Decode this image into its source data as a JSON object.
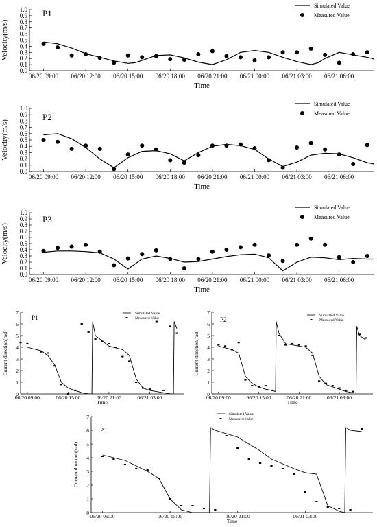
{
  "chart_data": [
    {
      "type": "line",
      "panel_label": "P1",
      "xlabel": "Time",
      "ylabel": "Velocity(m/s)",
      "ylim": [
        0,
        1.0
      ],
      "y_ticks": [
        "0.0",
        "0.1",
        "0.2",
        "0.3",
        "0.4",
        "0.5",
        "0.6",
        "0.7",
        "0.8",
        "0.9",
        "1.0"
      ],
      "x_ticks": [
        "06/20  09:00",
        "06/20  12:00",
        "06/20  15:00",
        "06/20  18:00",
        "06/20  21:00",
        "06/21  00:00",
        "06/21  03:00",
        "06/21  06:00"
      ],
      "legend": [
        "Simulated Value",
        "Measured Value"
      ],
      "legend_position": "top-right",
      "series": [
        {
          "name": "Simulated Value",
          "style": "line",
          "x_hours": [
            0,
            1,
            2,
            3,
            4,
            5,
            6,
            6.5,
            7,
            8,
            9,
            10,
            11,
            12,
            13,
            14,
            15,
            16,
            17,
            18,
            19,
            19.5,
            20,
            21,
            22,
            23,
            23.5
          ],
          "values": [
            0.47,
            0.44,
            0.37,
            0.28,
            0.22,
            0.16,
            0.12,
            0.13,
            0.17,
            0.25,
            0.26,
            0.21,
            0.14,
            0.1,
            0.18,
            0.3,
            0.33,
            0.3,
            0.22,
            0.15,
            0.1,
            0.13,
            0.2,
            0.3,
            0.26,
            0.22,
            0.19
          ]
        },
        {
          "name": "Measured Value",
          "style": "scatter",
          "x_hours": [
            0,
            1,
            2,
            3,
            4,
            5,
            6,
            7,
            8,
            9,
            10,
            11,
            12,
            13,
            14,
            15,
            16,
            17,
            18,
            19,
            20,
            21,
            22,
            23,
            24
          ],
          "values": [
            0.44,
            0.38,
            0.25,
            0.27,
            0.21,
            0.13,
            0.25,
            0.22,
            0.24,
            0.19,
            0.18,
            0.27,
            0.32,
            0.24,
            0.22,
            0.17,
            0.22,
            0.3,
            0.3,
            0.36,
            0.26,
            0.13,
            0.27,
            0.3,
            0.13
          ]
        }
      ]
    },
    {
      "type": "line",
      "panel_label": "P2",
      "xlabel": "Time",
      "ylabel": "Velocity(m/s)",
      "ylim": [
        0,
        1.0
      ],
      "y_ticks": [
        "0.0",
        "0.1",
        "0.2",
        "0.3",
        "0.4",
        "0.5",
        "0.6",
        "0.7",
        "0.8",
        "0.9",
        "1.0"
      ],
      "x_ticks": [
        "06/20  09:00",
        "06/20  12:00",
        "06/20  15:00",
        "06/20  18:00",
        "06/20  21:00",
        "06/21  00:00",
        "06/21  03:00",
        "06/21  06:00"
      ],
      "legend": [
        "Simulated Value",
        "Measured Value"
      ],
      "legend_position": "top-right",
      "series": [
        {
          "name": "Simulated Value",
          "style": "line",
          "x_hours": [
            0,
            1,
            2,
            3,
            4,
            5,
            6,
            7,
            8,
            9,
            10,
            11,
            12,
            13,
            14,
            15,
            16,
            17,
            18,
            19,
            20,
            21,
            22,
            23,
            23.5
          ],
          "values": [
            0.58,
            0.6,
            0.52,
            0.38,
            0.2,
            0.06,
            0.22,
            0.32,
            0.33,
            0.28,
            0.17,
            0.3,
            0.4,
            0.43,
            0.41,
            0.35,
            0.2,
            0.08,
            0.15,
            0.26,
            0.29,
            0.28,
            0.22,
            0.14,
            0.12
          ]
        },
        {
          "name": "Measured Value",
          "style": "scatter",
          "x_hours": [
            0,
            1,
            2,
            3,
            4,
            5,
            6,
            7,
            8,
            9,
            10,
            11,
            12,
            13,
            14,
            15,
            16,
            17,
            18,
            19,
            20,
            21,
            22,
            23,
            24
          ],
          "values": [
            0.5,
            0.47,
            0.36,
            0.41,
            0.36,
            0.04,
            0.27,
            0.41,
            0.35,
            0.18,
            0.14,
            0.26,
            0.41,
            0.41,
            0.43,
            0.37,
            0.18,
            0.06,
            0.38,
            0.45,
            0.35,
            0.27,
            0.12,
            0.42,
            0.37
          ]
        }
      ]
    },
    {
      "type": "line",
      "panel_label": "P3",
      "xlabel": "Time",
      "ylabel": "Velocity(m/s)",
      "ylim": [
        0,
        1.0
      ],
      "y_ticks": [
        "0.0",
        "0.1",
        "0.2",
        "0.3",
        "0.4",
        "0.5",
        "0.6",
        "0.7",
        "0.8",
        "0.9",
        "1.0"
      ],
      "x_ticks": [
        "06/20  09:00",
        "06/20  12:00",
        "06/20  15:00",
        "06/20  18:00",
        "06/20  21:00",
        "06/21  00:00",
        "06/21  03:00",
        "06/21  06:00"
      ],
      "legend": [
        "Simulated Value",
        "Measured Value"
      ],
      "legend_position": "top-right",
      "series": [
        {
          "name": "Simulated Value",
          "style": "line",
          "x_hours": [
            0,
            1,
            2,
            3,
            4,
            5,
            6,
            7,
            8,
            9,
            10,
            11,
            12,
            13,
            14,
            15,
            16,
            17,
            18,
            19,
            20,
            21,
            22,
            23,
            23.5
          ],
          "values": [
            0.36,
            0.38,
            0.38,
            0.37,
            0.35,
            0.25,
            0.09,
            0.25,
            0.3,
            0.26,
            0.2,
            0.21,
            0.25,
            0.29,
            0.32,
            0.33,
            0.27,
            0.06,
            0.2,
            0.28,
            0.27,
            0.24,
            0.26,
            0.25,
            0.25
          ]
        },
        {
          "name": "Measured Value",
          "style": "scatter",
          "x_hours": [
            0,
            1,
            2,
            3,
            4,
            5,
            6,
            7,
            8,
            9,
            10,
            11,
            12,
            13,
            14,
            15,
            16,
            17,
            18,
            19,
            20,
            21,
            22,
            23,
            24
          ],
          "values": [
            0.38,
            0.43,
            0.45,
            0.48,
            0.37,
            0.15,
            0.26,
            0.33,
            0.39,
            0.25,
            0.1,
            0.25,
            0.37,
            0.4,
            0.44,
            0.48,
            0.31,
            0.22,
            0.48,
            0.58,
            0.48,
            0.28,
            0.2,
            0.3,
            0.29
          ]
        }
      ]
    },
    {
      "type": "line",
      "panel_label": "P1",
      "xlabel": "Time",
      "ylabel": "Current direction(rad)",
      "ylim": [
        0,
        7
      ],
      "y_ticks": [
        "0",
        "1",
        "2",
        "3",
        "4",
        "5",
        "6",
        "7"
      ],
      "x_ticks": [
        "06/20  09:00",
        "06/20  15:00",
        "06/20  21:00",
        "06/21  03:00"
      ],
      "legend": [
        "Simulated Value",
        "Measured Value"
      ],
      "legend_position": "top-right",
      "series": [
        {
          "name": "Simulated Value",
          "style": "line",
          "x_hours": [
            0,
            2,
            3,
            4,
            5,
            6,
            7,
            8,
            9,
            9.5,
            9.6,
            10,
            12,
            14,
            15,
            16,
            17,
            18,
            20,
            21,
            21.5,
            21.6,
            22
          ],
          "values": [
            4.0,
            3.7,
            3.3,
            2.5,
            1.0,
            0.5,
            0.3,
            0.1,
            0.0,
            0.0,
            6.2,
            5.0,
            4.1,
            3.8,
            3.3,
            1.3,
            0.5,
            0.3,
            0.1,
            0.0,
            0.0,
            6.2,
            5.6
          ]
        },
        {
          "name": "Measured Value",
          "style": "scatter",
          "x_hours": [
            -1,
            0,
            2,
            3,
            4,
            5,
            6,
            7,
            8,
            9,
            10,
            11,
            12,
            13,
            14,
            15,
            16,
            17,
            18,
            19,
            20,
            21,
            22
          ],
          "values": [
            4.4,
            4.3,
            3.6,
            3.5,
            2.4,
            0.8,
            0.0,
            0.3,
            6.0,
            5.3,
            4.7,
            4.5,
            4.3,
            4.0,
            3.2,
            2.8,
            1.0,
            0.5,
            0.4,
            6.2,
            0.3,
            5.8,
            5.2
          ]
        }
      ]
    },
    {
      "type": "line",
      "panel_label": "P2",
      "xlabel": "Time",
      "ylabel": "Current direction(rad)",
      "ylim": [
        0,
        7
      ],
      "y_ticks": [
        "0",
        "1",
        "2",
        "3",
        "4",
        "5",
        "6",
        "7"
      ],
      "x_ticks": [
        "06/20  09:00",
        "06/20  15:00",
        "06/20  21:00",
        "06/21  03:00"
      ],
      "legend": [
        "Simulated Value",
        "Measured Value"
      ],
      "legend_position": "top-right",
      "series": [
        {
          "name": "Simulated Value",
          "style": "line",
          "x_hours": [
            0,
            2,
            3,
            4,
            5,
            6,
            7,
            8,
            8.5,
            8.6,
            9,
            10,
            12,
            13,
            14,
            15,
            16,
            17,
            18,
            19,
            20,
            20.5,
            20.6,
            21,
            22
          ],
          "values": [
            4.1,
            3.8,
            3.5,
            1.5,
            0.9,
            0.6,
            0.4,
            0.3,
            0.2,
            6.2,
            5.2,
            4.3,
            4.1,
            4.0,
            3.5,
            1.5,
            0.8,
            0.6,
            0.4,
            0.2,
            0.1,
            0.1,
            5.8,
            5.0,
            4.6
          ]
        },
        {
          "name": "Measured Value",
          "style": "scatter",
          "x_hours": [
            0,
            1,
            2,
            3,
            4,
            5,
            6,
            7,
            8,
            9,
            10,
            11,
            12,
            13,
            14,
            15,
            16,
            17,
            18,
            19,
            20,
            21,
            22
          ],
          "values": [
            4.2,
            4.1,
            3.8,
            4.4,
            1.2,
            0.7,
            0.6,
            0.7,
            0.3,
            5.0,
            4.2,
            4.3,
            4.2,
            4.1,
            3.3,
            1.1,
            0.9,
            0.7,
            0.5,
            0.3,
            0.2,
            5.1,
            4.8
          ]
        }
      ]
    },
    {
      "type": "line",
      "panel_label": "P3",
      "xlabel": "Time",
      "ylabel": "Current direction(rad)",
      "ylim": [
        0,
        7
      ],
      "y_ticks": [
        "0",
        "1",
        "2",
        "3",
        "4",
        "5",
        "6",
        "7"
      ],
      "x_ticks": [
        "06/20  09:00",
        "06/20  15:00",
        "06/20  21:00",
        "06/21  03:00"
      ],
      "legend": [
        "Simulated Value",
        "Measured Value"
      ],
      "legend_position": "top-right",
      "series": [
        {
          "name": "Simulated Value",
          "style": "line",
          "x_hours": [
            0,
            2,
            3,
            4,
            5,
            6,
            7,
            8,
            9,
            9.5,
            9.6,
            10,
            12,
            14,
            15,
            17,
            18,
            19,
            20,
            21,
            21.5,
            21.6,
            22,
            23
          ],
          "values": [
            4.2,
            3.8,
            3.4,
            3.0,
            2.5,
            1.0,
            0.2,
            0.0,
            0.0,
            0.0,
            6.2,
            6.0,
            5.5,
            4.5,
            3.9,
            3.2,
            2.9,
            2.8,
            0.5,
            0.1,
            0.0,
            6.2,
            6.0,
            5.9
          ]
        },
        {
          "name": "Measured Value",
          "style": "scatter",
          "x_hours": [
            0,
            1,
            2,
            3,
            4,
            5,
            6,
            7,
            8,
            9,
            10,
            11,
            12,
            13,
            14,
            15,
            16,
            17,
            18,
            19,
            20,
            21,
            22,
            23
          ],
          "values": [
            4.1,
            3.9,
            3.5,
            3.2,
            3.1,
            2.5,
            1.0,
            0.5,
            0.5,
            0.3,
            0.2,
            5.6,
            4.7,
            3.9,
            3.6,
            3.4,
            3.2,
            2.8,
            1.5,
            0.8,
            0.4,
            0.3,
            0.2,
            6.1
          ]
        }
      ]
    }
  ]
}
